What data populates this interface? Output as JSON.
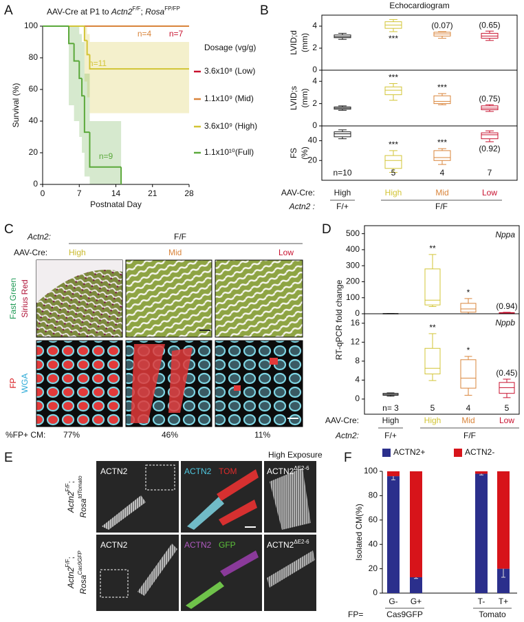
{
  "panel_labels": [
    "A",
    "B",
    "C",
    "D",
    "E",
    "F"
  ],
  "chart_data": [
    {
      "type": "line",
      "title": [
        "AAV-Cre at P1 to ",
        "Actn2",
        "F/F",
        "; ",
        "Rosa",
        "FP/FP"
      ],
      "x_label": "Postnatal Day",
      "y_label": "Survival (%)",
      "xlim": [
        0,
        28
      ],
      "xticks": [
        0,
        7,
        14,
        21,
        28
      ],
      "ylim": [
        0,
        100
      ],
      "yticks": [
        0,
        20,
        40,
        60,
        80,
        100
      ],
      "legend_title": "Dosage (vg/g)",
      "series": [
        {
          "name": "3.6x10⁸ (Low)",
          "color": "#c8102e",
          "n_label": "n=7",
          "x": [
            0,
            28
          ],
          "values": [
            100,
            100
          ]
        },
        {
          "name": "1.1x10⁹ (Mid)",
          "color": "#d9843a",
          "n_label": "n=4",
          "x": [
            0,
            28
          ],
          "values": [
            100,
            100
          ]
        },
        {
          "name": "3.6x10⁹ (High)",
          "color": "#d2c434",
          "n_label": "n=11",
          "x": [
            0,
            8,
            8.5,
            9,
            28
          ],
          "values": [
            100,
            91,
            82,
            73,
            73
          ],
          "ci_lower": [
            100,
            65,
            55,
            45,
            42
          ],
          "ci_upper": [
            100,
            100,
            95,
            90,
            90
          ]
        },
        {
          "name": "1.1x10¹⁰(Full)",
          "color": "#5aa83a",
          "n_label": "n=9",
          "x": [
            0,
            5,
            6,
            7,
            7.5,
            8,
            9,
            15
          ],
          "values": [
            100,
            89,
            78,
            67,
            56,
            33,
            11,
            0
          ],
          "ci_lower": [
            100,
            50,
            40,
            30,
            20,
            5,
            0,
            0
          ],
          "ci_upper": [
            100,
            100,
            100,
            95,
            90,
            70,
            40,
            0
          ]
        }
      ]
    },
    {
      "type": "box",
      "title": "Echocardiogram",
      "groups": [
        "High",
        "High",
        "Mid",
        "Low"
      ],
      "colors": [
        "#1a1a1a",
        "#d2c434",
        "#d9843a",
        "#c8102e"
      ],
      "n_labels": [
        "n=10",
        "5",
        "4",
        "7"
      ],
      "row_labels": [
        "AAV-Cre:",
        "Actn2 :"
      ],
      "genotypes": [
        "F/+",
        "F/F"
      ],
      "subplots": [
        {
          "y_label": [
            "LVID;d",
            "(mm)"
          ],
          "ylim": [
            0,
            5
          ],
          "yticks": [
            0,
            2,
            4
          ],
          "boxes": [
            {
              "min": 2.8,
              "q1": 2.95,
              "median": 3.05,
              "q3": 3.2,
              "max": 3.35
            },
            {
              "min": 3.5,
              "q1": 3.8,
              "median": 4.1,
              "q3": 4.4,
              "max": 4.6
            },
            {
              "min": 2.9,
              "q1": 3.1,
              "median": 3.3,
              "q3": 3.45,
              "max": 3.5
            },
            {
              "min": 2.7,
              "q1": 2.9,
              "median": 3.1,
              "q3": 3.35,
              "max": 3.55
            }
          ],
          "annotations": [
            null,
            "***",
            "(0.07)",
            "(0.65)"
          ]
        },
        {
          "y_label": [
            "LVID;s",
            "(mm)"
          ],
          "ylim": [
            0,
            5
          ],
          "yticks": [
            0,
            2,
            4
          ],
          "boxes": [
            {
              "min": 1.4,
              "q1": 1.5,
              "median": 1.6,
              "q3": 1.7,
              "max": 1.8
            },
            {
              "min": 2.3,
              "q1": 2.8,
              "median": 3.2,
              "q3": 3.5,
              "max": 3.8
            },
            {
              "min": 1.9,
              "q1": 2.0,
              "median": 2.2,
              "q3": 2.7,
              "max": 2.9
            },
            {
              "min": 1.3,
              "q1": 1.45,
              "median": 1.6,
              "q3": 1.8,
              "max": 1.9
            }
          ],
          "annotations": [
            null,
            "***",
            "***",
            "(0.75)"
          ]
        },
        {
          "y_label": [
            "FS",
            "(%)"
          ],
          "ylim": [
            0,
            55
          ],
          "yticks": [
            20,
            40
          ],
          "boxes": [
            {
              "min": 42,
              "q1": 44,
              "median": 47,
              "q3": 49,
              "max": 51
            },
            {
              "min": 8,
              "q1": 12,
              "median": 20,
              "q3": 25,
              "max": 30
            },
            {
              "min": 16,
              "q1": 20,
              "median": 23,
              "q3": 30,
              "max": 32
            },
            {
              "min": 39,
              "q1": 42,
              "median": 46,
              "q3": 48,
              "max": 50
            }
          ],
          "annotations": [
            null,
            "***",
            "***",
            "(0.92)"
          ]
        }
      ]
    },
    {
      "type": "box",
      "y_label": "RT-qPCR fold change",
      "groups": [
        "High",
        "High",
        "Mid",
        "Low"
      ],
      "colors": [
        "#1a1a1a",
        "#d2c434",
        "#d9843a",
        "#c8102e"
      ],
      "n_labels": [
        "n= 3",
        "5",
        "4",
        "5"
      ],
      "row_labels": [
        "AAV-Cre:",
        "Actn2:"
      ],
      "genotypes": [
        "F/+",
        "F/F"
      ],
      "subplots": [
        {
          "title": "Nppa",
          "ylim": [
            0,
            550
          ],
          "yticks": [
            0,
            100,
            200,
            300,
            400,
            500
          ],
          "boxes": [
            {
              "min": 0.5,
              "q1": 0.8,
              "median": 1,
              "q3": 1.2,
              "max": 1.5
            },
            {
              "min": 45,
              "q1": 55,
              "median": 85,
              "q3": 280,
              "max": 370
            },
            {
              "min": 0,
              "q1": 10,
              "median": 30,
              "q3": 65,
              "max": 95
            },
            {
              "min": 2,
              "q1": 4,
              "median": 5,
              "q3": 7,
              "max": 9
            }
          ],
          "annotations": [
            null,
            "**",
            "*",
            "(0.94)"
          ]
        },
        {
          "title": "Nppb",
          "ylim": [
            -3.2,
            18
          ],
          "yticks": [
            0,
            4,
            8,
            12,
            16
          ],
          "boxes": [
            {
              "min": 0.6,
              "q1": 0.8,
              "median": 1,
              "q3": 1.2,
              "max": 1.3
            },
            {
              "min": 3.9,
              "q1": 5.3,
              "median": 6.5,
              "q3": 10.7,
              "max": 13.8
            },
            {
              "min": 0.8,
              "q1": 2.3,
              "median": 4.4,
              "q3": 8.3,
              "max": 9
            },
            {
              "min": 0.3,
              "q1": 1.2,
              "median": 2.4,
              "q3": 3.5,
              "max": 4.2
            }
          ],
          "annotations": [
            null,
            "**",
            "*",
            "(0.45)"
          ]
        }
      ]
    },
    {
      "type": "bar",
      "y_label": "Isolated CM(%)",
      "categories": [
        "G-",
        "G+",
        "T-",
        "T+"
      ],
      "groups": [
        "Cas9GFP",
        "Tomato"
      ],
      "group_label": "FP=",
      "ylim": [
        0,
        100
      ],
      "yticks": [
        0,
        20,
        40,
        60,
        80,
        100
      ],
      "series": [
        {
          "name": "ACTN2+",
          "color": "#2b2f8c",
          "values": [
            96,
            13,
            98,
            20
          ],
          "errors": [
            3,
            1,
            1,
            7
          ]
        },
        {
          "name": "ACTN2-",
          "color": "#d7141a",
          "values": [
            4,
            87,
            2,
            80
          ]
        }
      ]
    }
  ],
  "panel_C": {
    "actn2_label": "Actn2:",
    "genotype": "F/F",
    "cre_label": "AAV-Cre:",
    "doses": [
      "High",
      "Mid",
      "Low"
    ],
    "stains_top": [
      "Fast Green",
      "Sirius Red"
    ],
    "stains_bottom": [
      "FP",
      "WGA"
    ],
    "fp_label": "%FP+ CM:",
    "fp_values": [
      "77%",
      "46%",
      "11%"
    ]
  },
  "panel_E": {
    "top_label": "High Exposure",
    "rows": [
      {
        "genotype": [
          "Actn2",
          "F/F",
          ";",
          "Rosa",
          "tdTomato"
        ],
        "labels": [
          "ACTN2",
          "ACTN2",
          "TOM",
          "ACTN2",
          "ΔE2-6"
        ]
      },
      {
        "genotype": [
          "Actn2",
          "F/F",
          ";",
          "Rosa",
          "Cas9GFP"
        ],
        "labels": [
          "ACTN2",
          "ACTN2",
          "GFP",
          "ACTN2",
          "ΔE2-6"
        ]
      }
    ]
  }
}
